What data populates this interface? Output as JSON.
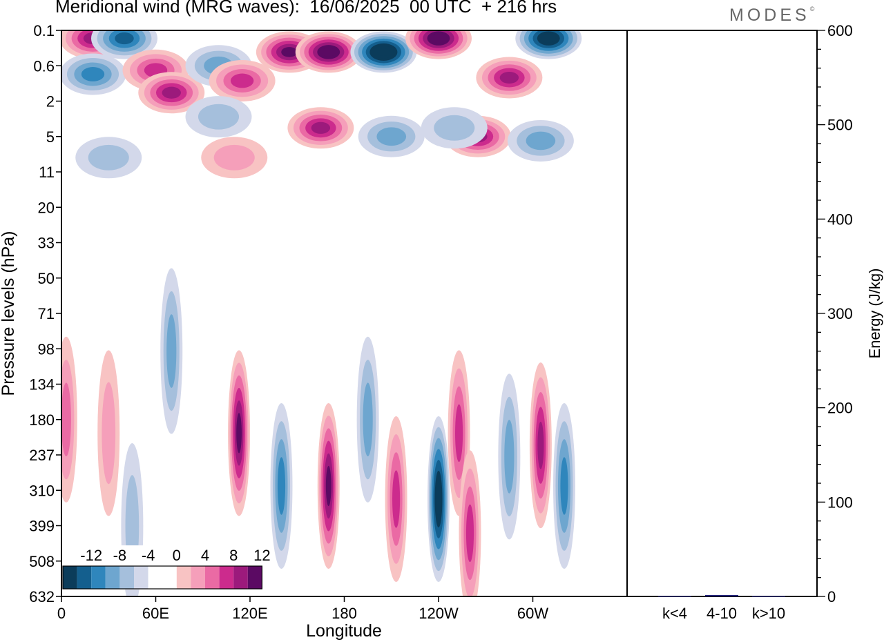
{
  "title": "Meridional wind (MRG waves):  16/06/2025  00 UTC  + 216 hrs",
  "brand": {
    "name": "MODES",
    "mark": "©"
  },
  "chart_data": [
    {
      "type": "heatmap",
      "title": "Meridional wind (MRG waves):  16/06/2025  00 UTC  + 216 hrs",
      "xlabel": "Longitude",
      "ylabel": "Pressure levels (hPa)",
      "x_ticks": [
        "0",
        "60E",
        "120E",
        "180",
        "120W",
        "60W"
      ],
      "y_ticks": [
        "0.1",
        "0.6",
        "2",
        "5",
        "11",
        "20",
        "33",
        "50",
        "71",
        "98",
        "134",
        "180",
        "237",
        "310",
        "399",
        "508",
        "632"
      ],
      "colorbar": {
        "labels": [
          "-12",
          "-8",
          "-4",
          "0",
          "4",
          "8",
          "12"
        ],
        "colors": [
          "#0b3c5a",
          "#145f8e",
          "#2f86bc",
          "#6ea6cf",
          "#a5bfdc",
          "#d3d8ea",
          "#ffffff",
          "#ffffff",
          "#f8c3c3",
          "#f59fba",
          "#ea6aa4",
          "#cc2b8d",
          "#9c1a7c",
          "#5b0a63"
        ]
      },
      "features": [
        {
          "lon": 20,
          "p": 0.15,
          "v": 11
        },
        {
          "lon": 40,
          "p": 0.15,
          "v": -10
        },
        {
          "lon": 20,
          "p": 0.8,
          "v": -9
        },
        {
          "lon": 60,
          "p": 0.7,
          "v": 9
        },
        {
          "lon": 70,
          "p": 1.5,
          "v": 10
        },
        {
          "lon": 100,
          "p": 0.6,
          "v": -6
        },
        {
          "lon": 115,
          "p": 1.0,
          "v": 9
        },
        {
          "lon": 100,
          "p": 3.0,
          "v": -5
        },
        {
          "lon": 145,
          "p": 0.3,
          "v": 12
        },
        {
          "lon": 170,
          "p": 0.3,
          "v": 14
        },
        {
          "lon": 165,
          "p": 4.0,
          "v": 11
        },
        {
          "lon": 205,
          "p": 0.3,
          "v": -16
        },
        {
          "lon": 240,
          "p": 0.15,
          "v": 14
        },
        {
          "lon": 310,
          "p": 0.15,
          "v": -14
        },
        {
          "lon": 285,
          "p": 0.9,
          "v": 10
        },
        {
          "lon": 265,
          "p": 5.0,
          "v": 10
        },
        {
          "lon": 305,
          "p": 5.5,
          "v": -6
        },
        {
          "lon": 210,
          "p": 5.0,
          "v": -6
        },
        {
          "lon": 250,
          "p": 4.0,
          "v": -4
        },
        {
          "lon": 30,
          "p": 8.0,
          "v": -4
        },
        {
          "lon": 110,
          "p": 8.0,
          "v": 4
        },
        {
          "lon": 70,
          "p": 100,
          "v": -7
        },
        {
          "lon": 113,
          "p": 200,
          "v": 12
        },
        {
          "lon": 140,
          "p": 300,
          "v": -8
        },
        {
          "lon": 170,
          "p": 300,
          "v": 12
        },
        {
          "lon": 195,
          "p": 180,
          "v": -6
        },
        {
          "lon": 213,
          "p": 330,
          "v": 9
        },
        {
          "lon": 240,
          "p": 330,
          "v": -14
        },
        {
          "lon": 253,
          "p": 200,
          "v": 9
        },
        {
          "lon": 260,
          "p": 420,
          "v": 9
        },
        {
          "lon": 285,
          "p": 240,
          "v": -7
        },
        {
          "lon": 305,
          "p": 220,
          "v": 11
        },
        {
          "lon": 320,
          "p": 300,
          "v": -8
        },
        {
          "lon": 3,
          "p": 180,
          "v": 6
        },
        {
          "lon": 30,
          "p": 200,
          "v": 4
        },
        {
          "lon": 45,
          "p": 400,
          "v": -4
        }
      ]
    },
    {
      "type": "bar",
      "ylabel": "Energy (J/kg)",
      "ylim": [
        0,
        600
      ],
      "y_ticks": [
        "0",
        "100",
        "200",
        "300",
        "400",
        "500",
        "600"
      ],
      "categories": [
        "k<4",
        "4-10",
        "k>10"
      ],
      "values": [
        0.5,
        1.5,
        0.4
      ],
      "colors": [
        "#3c3c8c",
        "#23237a",
        "#3c3c8c"
      ]
    }
  ]
}
